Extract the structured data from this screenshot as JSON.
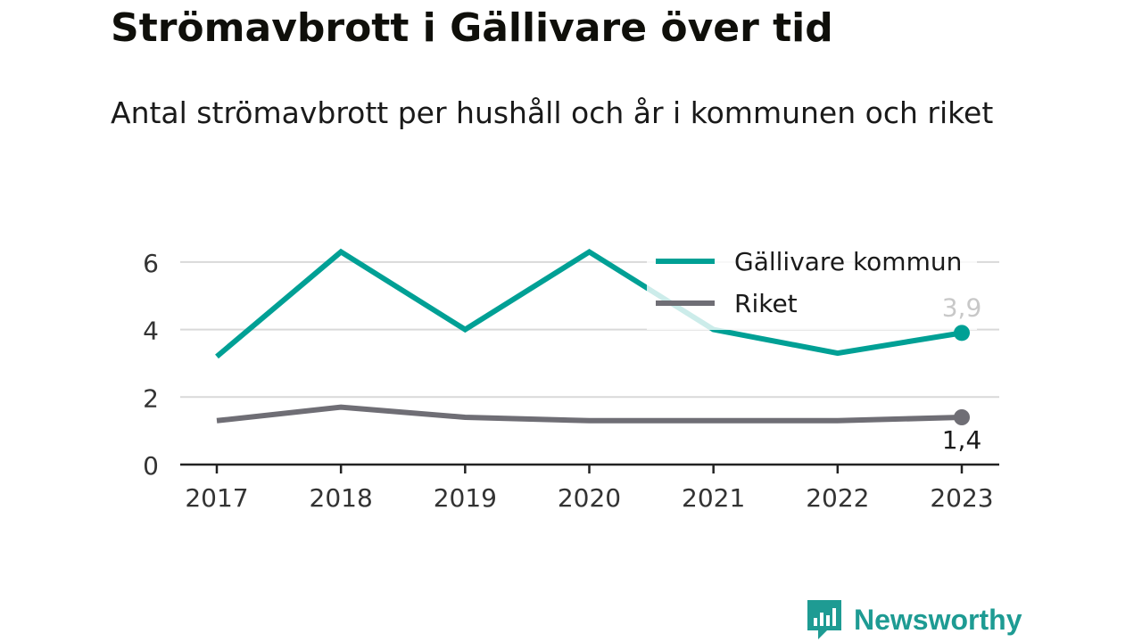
{
  "header": {
    "title": "Strömavbrott i Gällivare över tid",
    "subtitle": "Antal strömavbrott per hushåll och år i kommunen och riket"
  },
  "brand": {
    "name": "Newsworthy",
    "icon": "newsworthy-logo-icon",
    "color": "#1e9b93"
  },
  "chart_data": {
    "type": "line",
    "title": "Strömavbrott i Gällivare över tid",
    "subtitle": "Antal strömavbrott per hushåll och år i kommunen och riket",
    "xlabel": "",
    "ylabel": "",
    "x": [
      "2017",
      "2018",
      "2019",
      "2020",
      "2021",
      "2022",
      "2023"
    ],
    "ylim": [
      0,
      7
    ],
    "yticks": [
      0,
      2,
      4,
      6
    ],
    "grid": true,
    "legend": "top-right",
    "series": [
      {
        "name": "Gällivare kommun",
        "color": "#00a095",
        "values": [
          3.2,
          6.3,
          4.0,
          6.3,
          4.0,
          3.3,
          3.9
        ],
        "end_label": "3,9"
      },
      {
        "name": "Riket",
        "color": "#6f6e75",
        "values": [
          1.3,
          1.7,
          1.4,
          1.3,
          1.3,
          1.3,
          1.4
        ],
        "end_label": "1,4"
      }
    ]
  }
}
